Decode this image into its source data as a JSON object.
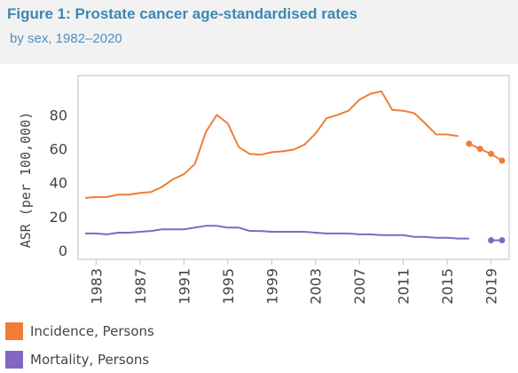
{
  "header": {
    "title": "Figure 1: Prostate cancer age-standardised rates",
    "subtitle": "by sex, 1982–2020"
  },
  "colors": {
    "incidence": "#f07d37",
    "mortality": "#8466c2",
    "title": "#3a87b5",
    "header_bg": "#f2f2f2"
  },
  "legend": [
    {
      "label": "Incidence, Persons",
      "color": "#f07d37"
    },
    {
      "label": "Mortality, Persons",
      "color": "#8466c2"
    }
  ],
  "chart_data": {
    "type": "line",
    "title": "",
    "xlabel": "",
    "ylabel": "ASR (per 100,000)",
    "xlim": [
      1982,
      2020
    ],
    "ylim": [
      0,
      97
    ],
    "yticks": [
      0,
      20,
      40,
      60,
      80
    ],
    "xticks": [
      1983,
      1987,
      1991,
      1995,
      1999,
      2003,
      2007,
      2011,
      2015,
      2019
    ],
    "grid": false,
    "series": [
      {
        "name": "Incidence, Persons",
        "color": "#f07d37",
        "x": [
          1982,
          1983,
          1984,
          1985,
          1986,
          1987,
          1988,
          1989,
          1990,
          1991,
          1992,
          1993,
          1994,
          1995,
          1996,
          1997,
          1998,
          1999,
          2000,
          2001,
          2002,
          2003,
          2004,
          2005,
          2006,
          2007,
          2008,
          2009,
          2010,
          2011,
          2012,
          2013,
          2014,
          2015,
          2016
        ],
        "values": [
          31,
          31.5,
          31.5,
          33,
          33,
          34,
          34.5,
          37.5,
          42,
          45,
          51,
          70,
          80,
          75,
          61,
          57,
          56.5,
          58,
          58.5,
          59.5,
          62.5,
          69,
          78,
          80,
          82.5,
          89,
          92.5,
          94,
          83,
          82.5,
          81,
          75,
          68.5,
          68.5,
          67.5
        ]
      },
      {
        "name": "Incidence, Persons (projected)",
        "color": "#f07d37",
        "dotted": true,
        "x": [
          2017,
          2018,
          2019,
          2020
        ],
        "values": [
          63,
          60,
          57,
          53
        ]
      },
      {
        "name": "Mortality, Persons",
        "color": "#8466c2",
        "x": [
          1982,
          1983,
          1984,
          1985,
          1986,
          1987,
          1988,
          1989,
          1990,
          1991,
          1992,
          1993,
          1994,
          1995,
          1996,
          1997,
          1998,
          1999,
          2000,
          2001,
          2002,
          2003,
          2004,
          2005,
          2006,
          2007,
          2008,
          2009,
          2010,
          2011,
          2012,
          2013,
          2014,
          2015,
          2016,
          2017
        ],
        "values": [
          10,
          10,
          9.5,
          10.5,
          10.5,
          11,
          11.5,
          12.5,
          12.5,
          12.5,
          13.5,
          14.5,
          14.5,
          13.5,
          13.5,
          11.5,
          11.5,
          11,
          11,
          11,
          11,
          10.5,
          10,
          10,
          10,
          9.5,
          9.5,
          9,
          9,
          9,
          8,
          8,
          7.5,
          7.5,
          7,
          7
        ]
      },
      {
        "name": "Mortality, Persons (projected)",
        "color": "#8466c2",
        "dotted": true,
        "x": [
          2019,
          2020
        ],
        "values": [
          6,
          6
        ]
      }
    ]
  }
}
